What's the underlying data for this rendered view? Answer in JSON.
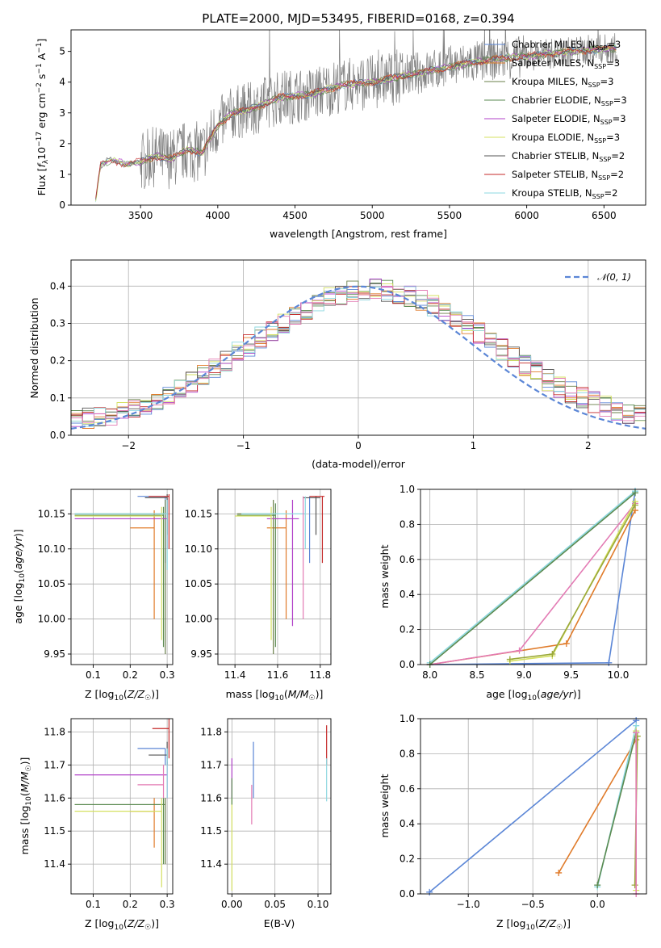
{
  "colors": {
    "cmiles": "#5b86d6",
    "smiles": "#e07b2a",
    "kmiles": "#6a7f4a",
    "celodie": "#5a8a50",
    "selodie": "#b040c8",
    "kelodie": "#d4e060",
    "cstelib": "#555555",
    "sstelib": "#c42a2a",
    "kstelib": "#8ed8e0",
    "normal": "#5b86d6",
    "pink": "#e37bb4",
    "olive": "#9aa83a",
    "data": "#808080"
  },
  "chart_data": [
    {
      "id": "spectrum",
      "type": "line",
      "title": "PLATE=2000, MJD=53495, FIBERID=0168, z=0.394",
      "xlabel": "wavelength [Angstrom, rest frame]",
      "ylabel": "Flux [f_λ 10^-17 erg cm^-2 s^-1 A^-1]",
      "xlim": [
        3050,
        6770
      ],
      "ylim": [
        0,
        5.7
      ],
      "xticks": [
        "3500",
        "4000",
        "4500",
        "5000",
        "5500",
        "6000",
        "6500"
      ],
      "yticks": [
        "0",
        "1",
        "2",
        "3",
        "4",
        "5"
      ],
      "grid": false,
      "legend_position": "top-right",
      "legend": [
        {
          "name": "Chabrier MILES, N_SSP=3",
          "color": "cmiles"
        },
        {
          "name": "Salpeter MILES, N_SSP=3",
          "color": "smiles"
        },
        {
          "name": "Kroupa MILES, N_SSP=3",
          "color": "kmiles"
        },
        {
          "name": "Chabrier ELODIE, N_SSP=3",
          "color": "celodie"
        },
        {
          "name": "Salpeter ELODIE, N_SSP=3",
          "color": "selodie"
        },
        {
          "name": "Kroupa ELODIE, N_SSP=3",
          "color": "kelodie"
        },
        {
          "name": "Chabrier STELIB, N_SSP=2",
          "color": "cstelib"
        },
        {
          "name": "Salpeter STELIB, N_SSP=2",
          "color": "sstelib"
        },
        {
          "name": "Kroupa STELIB, N_SSP=2",
          "color": "kstelib"
        }
      ],
      "continuum": [
        [
          3210,
          0.2
        ],
        [
          3240,
          1.3
        ],
        [
          3300,
          1.45
        ],
        [
          3400,
          1.35
        ],
        [
          3500,
          1.4
        ],
        [
          3600,
          1.6
        ],
        [
          3700,
          1.5
        ],
        [
          3800,
          1.8
        ],
        [
          3900,
          1.7
        ],
        [
          4000,
          2.6
        ],
        [
          4100,
          3.0
        ],
        [
          4200,
          3.1
        ],
        [
          4400,
          3.5
        ],
        [
          4600,
          3.6
        ],
        [
          4800,
          3.9
        ],
        [
          5000,
          4.0
        ],
        [
          5200,
          4.2
        ],
        [
          5400,
          4.4
        ],
        [
          5600,
          4.6
        ],
        [
          5800,
          4.75
        ],
        [
          6000,
          4.85
        ],
        [
          6200,
          4.95
        ],
        [
          6400,
          5.05
        ],
        [
          6580,
          5.1
        ]
      ]
    },
    {
      "id": "residuals",
      "type": "line",
      "xlabel": "(data-model)/error",
      "ylabel": "Normed distribution",
      "xlim": [
        -2.5,
        2.5
      ],
      "ylim": [
        0,
        0.47
      ],
      "xticks": [
        "−2",
        "−1",
        "0",
        "1",
        "2"
      ],
      "yticks": [
        "0.0",
        "0.1",
        "0.2",
        "0.3",
        "0.4"
      ],
      "grid": true,
      "legend": [
        {
          "name": "𝒩(0, 1)",
          "color": "normal",
          "style": "dashed"
        }
      ],
      "legend_position": "top-right"
    },
    {
      "id": "age-vs-Z",
      "type": "scatter",
      "xlabel": "Z [log10(Z/Z☉)]",
      "ylabel": "age [log10(age/yr)]",
      "xlim": [
        0.04,
        0.315
      ],
      "ylim": [
        9.935,
        10.185
      ],
      "xticks": [
        "0.1",
        "0.2",
        "0.3"
      ],
      "yticks": [
        "9.95",
        "10.00",
        "10.05",
        "10.10",
        "10.15"
      ],
      "grid": true,
      "points": [
        {
          "color": "cmiles",
          "x": 0.295,
          "y": 10.175,
          "xerr": [
            0.22,
            0.295
          ],
          "yerr": [
            10.08,
            10.175
          ]
        },
        {
          "color": "smiles",
          "x": 0.265,
          "y": 10.13,
          "xerr": [
            0.2,
            0.265
          ],
          "yerr": [
            10.0,
            10.155
          ]
        },
        {
          "color": "kmiles",
          "x": 0.295,
          "y": 10.15,
          "xerr": [
            0.05,
            0.295
          ],
          "yerr": [
            9.95,
            10.17
          ]
        },
        {
          "color": "celodie",
          "x": 0.29,
          "y": 10.148,
          "xerr": [
            0.05,
            0.29
          ],
          "yerr": [
            9.96,
            10.16
          ]
        },
        {
          "color": "selodie",
          "x": 0.3,
          "y": 10.143,
          "xerr": [
            0.05,
            0.3
          ],
          "yerr": [
            10.1,
            10.17
          ]
        },
        {
          "color": "kelodie",
          "x": 0.285,
          "y": 10.147,
          "xerr": [
            0.05,
            0.285
          ],
          "yerr": [
            9.97,
            10.16
          ]
        },
        {
          "color": "cstelib",
          "x": 0.3,
          "y": 10.173,
          "xerr": [
            0.24,
            0.3
          ],
          "yerr": [
            10.12,
            10.178
          ]
        },
        {
          "color": "sstelib",
          "x": 0.305,
          "y": 10.175,
          "xerr": [
            0.25,
            0.305
          ],
          "yerr": [
            10.1,
            10.178
          ]
        },
        {
          "color": "kstelib",
          "x": 0.3,
          "y": 10.15,
          "xerr": [
            0.05,
            0.3
          ],
          "yerr": [
            10.07,
            10.17
          ]
        }
      ]
    },
    {
      "id": "age-vs-mass",
      "type": "scatter",
      "xlabel": "mass [log10(M/M☉)]",
      "ylabel": "",
      "xlim": [
        11.32,
        11.85
      ],
      "ylim": [
        9.935,
        10.185
      ],
      "xticks": [
        "11.4",
        "11.6",
        "11.8"
      ],
      "yticks": [
        "9.95",
        "10.00",
        "10.05",
        "10.10",
        "10.15"
      ],
      "grid": true,
      "points": [
        {
          "color": "cmiles",
          "x": 11.75,
          "y": 10.175,
          "xerr": [
            11.75,
            11.75
          ],
          "yerr": [
            10.08,
            10.175
          ]
        },
        {
          "color": "smiles",
          "x": 11.64,
          "y": 10.13,
          "xerr": [
            11.55,
            11.64
          ],
          "yerr": [
            10.0,
            10.155
          ]
        },
        {
          "color": "kmiles",
          "x": 11.58,
          "y": 10.15,
          "xerr": [
            11.41,
            11.58
          ],
          "yerr": [
            9.95,
            10.17
          ]
        },
        {
          "color": "celodie",
          "x": 11.59,
          "y": 10.148,
          "xerr": [
            11.41,
            11.59
          ],
          "yerr": [
            9.96,
            10.165
          ]
        },
        {
          "color": "selodie",
          "x": 11.67,
          "y": 10.143,
          "xerr": [
            11.55,
            11.7
          ],
          "yerr": [
            9.99,
            10.17
          ]
        },
        {
          "color": "kelodie",
          "x": 11.57,
          "y": 10.147,
          "xerr": [
            11.4,
            11.57
          ],
          "yerr": [
            9.97,
            10.16
          ]
        },
        {
          "color": "cstelib",
          "x": 11.78,
          "y": 10.173,
          "xerr": [
            11.72,
            11.8
          ],
          "yerr": [
            10.12,
            10.175
          ]
        },
        {
          "color": "sstelib",
          "x": 11.81,
          "y": 10.175,
          "xerr": [
            11.75,
            11.82
          ],
          "yerr": [
            10.08,
            10.175
          ]
        },
        {
          "color": "kstelib",
          "x": 11.73,
          "y": 10.15,
          "xerr": [
            11.43,
            11.73
          ],
          "yerr": [
            10.1,
            10.175
          ]
        },
        {
          "color": "pink",
          "x": 11.72,
          "y": 10.175,
          "xerr": [
            11.72,
            11.72
          ],
          "yerr": [
            10.0,
            10.175
          ]
        }
      ]
    },
    {
      "id": "mass-weight-vs-age",
      "type": "line",
      "xlabel": "age [log10(age/yr)]",
      "ylabel": "mass weight",
      "xlim": [
        7.9,
        10.3
      ],
      "ylim": [
        0,
        1.0
      ],
      "xticks": [
        "8.0",
        "8.5",
        "9.0",
        "9.5",
        "10.0"
      ],
      "yticks": [
        "0.0",
        "0.2",
        "0.4",
        "0.6",
        "0.8",
        "1.0"
      ],
      "grid": true,
      "series": [
        {
          "color": "cmiles",
          "x": [
            8.0,
            9.9,
            10.18
          ],
          "y": [
            0.0,
            0.01,
            0.99
          ]
        },
        {
          "color": "smiles",
          "x": [
            8.0,
            9.45,
            10.18
          ],
          "y": [
            0.0,
            0.12,
            0.88
          ]
        },
        {
          "color": "pink",
          "x": [
            8.0,
            8.95,
            10.18
          ],
          "y": [
            0.0,
            0.08,
            0.92
          ]
        },
        {
          "color": "kelodie",
          "x": [
            8.85,
            9.3,
            10.18
          ],
          "y": [
            0.02,
            0.05,
            0.93
          ]
        },
        {
          "color": "olive",
          "x": [
            8.85,
            9.3,
            10.18
          ],
          "y": [
            0.03,
            0.06,
            0.91
          ]
        },
        {
          "color": "kstelib",
          "x": [
            8.0,
            10.18
          ],
          "y": [
            0.01,
            0.99
          ]
        },
        {
          "color": "celodie",
          "x": [
            8.0,
            10.18
          ],
          "y": [
            0.0,
            0.98
          ]
        }
      ]
    },
    {
      "id": "mass-vs-Z",
      "type": "scatter",
      "xlabel": "Z [log10(Z/Z☉)]",
      "ylabel": "mass [log10(M/M☉)]",
      "xlim": [
        0.04,
        0.315
      ],
      "ylim": [
        11.31,
        11.84
      ],
      "xticks": [
        "0.1",
        "0.2",
        "0.3"
      ],
      "yticks": [
        "11.4",
        "11.5",
        "11.6",
        "11.7",
        "11.8"
      ],
      "grid": true,
      "points": [
        {
          "color": "cmiles",
          "x": 0.295,
          "y": 11.75,
          "xerr": [
            0.22,
            0.295
          ],
          "yerr": [
            11.7,
            11.75
          ]
        },
        {
          "color": "smiles",
          "x": 0.265,
          "y": 11.56,
          "xerr": [
            0.2,
            0.265
          ],
          "yerr": [
            11.45,
            11.6
          ]
        },
        {
          "color": "kmiles",
          "x": 0.295,
          "y": 11.58,
          "xerr": [
            0.05,
            0.295
          ],
          "yerr": [
            11.4,
            11.6
          ]
        },
        {
          "color": "celodie",
          "x": 0.29,
          "y": 11.58,
          "xerr": [
            0.05,
            0.29
          ],
          "yerr": [
            11.4,
            11.6
          ]
        },
        {
          "color": "selodie",
          "x": 0.3,
          "y": 11.67,
          "xerr": [
            0.05,
            0.3
          ],
          "yerr": [
            11.6,
            11.71
          ]
        },
        {
          "color": "kelodie",
          "x": 0.285,
          "y": 11.56,
          "xerr": [
            0.05,
            0.285
          ],
          "yerr": [
            11.33,
            11.6
          ]
        },
        {
          "color": "cstelib",
          "x": 0.3,
          "y": 11.73,
          "xerr": [
            0.25,
            0.3
          ],
          "yerr": [
            11.7,
            11.77
          ]
        },
        {
          "color": "sstelib",
          "x": 0.305,
          "y": 11.81,
          "xerr": [
            0.26,
            0.305
          ],
          "yerr": [
            11.72,
            11.84
          ]
        },
        {
          "color": "pink",
          "x": 0.29,
          "y": 11.64,
          "xerr": [
            0.22,
            0.29
          ],
          "yerr": [
            11.6,
            11.7
          ]
        },
        {
          "color": "kstelib",
          "x": 0.3,
          "y": 11.7,
          "xerr": [
            0.3,
            0.3
          ],
          "yerr": [
            11.6,
            11.75
          ]
        }
      ]
    },
    {
      "id": "mass-vs-EBV",
      "type": "scatter",
      "xlabel": "E(B-V)",
      "ylabel": "",
      "xlim": [
        -0.005,
        0.115
      ],
      "ylim": [
        11.31,
        11.84
      ],
      "xticks": [
        "0.00",
        "0.05",
        "0.10"
      ],
      "yticks": [
        "11.4",
        "11.5",
        "11.6",
        "11.7",
        "11.8"
      ],
      "grid": true,
      "points": [
        {
          "color": "cmiles",
          "x": 0.025,
          "y": 11.7,
          "yerr": [
            11.6,
            11.77
          ]
        },
        {
          "color": "pink",
          "x": 0.023,
          "y": 11.58,
          "yerr": [
            11.52,
            11.64
          ]
        },
        {
          "color": "selodie",
          "x": 0.0,
          "y": 11.66,
          "yerr": [
            11.6,
            11.72
          ]
        },
        {
          "color": "kelodie",
          "x": 0.0,
          "y": 11.45,
          "yerr": [
            11.32,
            11.6
          ]
        },
        {
          "color": "sstelib",
          "x": 0.11,
          "y": 11.76,
          "yerr": [
            11.7,
            11.82
          ]
        },
        {
          "color": "kstelib",
          "x": 0.11,
          "y": 11.65,
          "yerr": [
            11.59,
            11.72
          ]
        },
        {
          "color": "celodie",
          "x": 0.0,
          "y": 11.62,
          "yerr": [
            11.58,
            11.66
          ]
        }
      ]
    },
    {
      "id": "mass-weight-vs-Z",
      "type": "line",
      "xlabel": "Z [log10(Z/Z☉)]",
      "ylabel": "mass weight",
      "xlim": [
        -1.37,
        0.38
      ],
      "ylim": [
        0,
        1.0
      ],
      "xticks": [
        "−1.0",
        "−0.5",
        "0.0"
      ],
      "yticks": [
        "0.0",
        "0.2",
        "0.4",
        "0.6",
        "0.8",
        "1.0"
      ],
      "grid": true,
      "series": [
        {
          "color": "cmiles",
          "x": [
            -1.3,
            0.3
          ],
          "y": [
            0.01,
            0.99
          ]
        },
        {
          "color": "smiles",
          "x": [
            -0.3,
            0.3
          ],
          "y": [
            0.12,
            0.88
          ]
        },
        {
          "color": "kstelib",
          "x": [
            0.0,
            0.3
          ],
          "y": [
            0.04,
            0.96
          ]
        },
        {
          "color": "celodie",
          "x": [
            0.0,
            0.3
          ],
          "y": [
            0.05,
            0.92
          ]
        },
        {
          "color": "kelodie",
          "x": [
            0.3,
            0.3
          ],
          "y": [
            0.02,
            0.93
          ]
        },
        {
          "color": "olive",
          "x": [
            0.29,
            0.31
          ],
          "y": [
            0.05,
            0.9
          ]
        },
        {
          "color": "pink",
          "x": [
            0.3,
            0.3
          ],
          "y": [
            0.0,
            0.92
          ]
        }
      ]
    }
  ]
}
